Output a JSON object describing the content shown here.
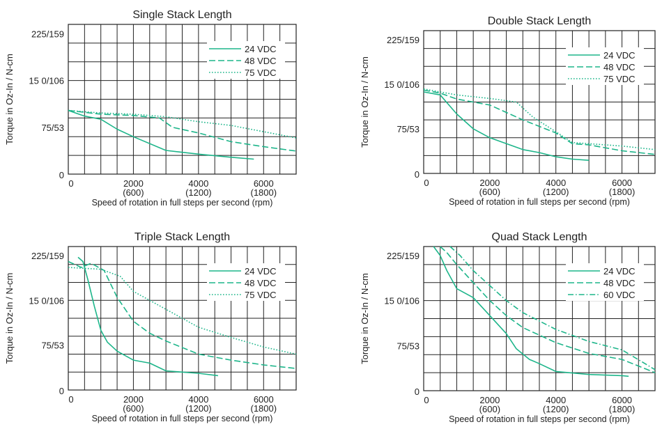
{
  "colors": {
    "series": "#1db58a",
    "grid": "#222222",
    "text": "#222222"
  },
  "chart_data": [
    {
      "type": "line",
      "title": "Single Stack Length",
      "xlabel": "Speed of rotation in full steps per second (rpm)",
      "ylabel": "Torque in Oz-In / N-cm",
      "xlim": [
        0,
        7000
      ],
      "ylim": [
        0,
        240
      ],
      "xticks": [
        {
          "value": 0,
          "label": "0",
          "sub": ""
        },
        {
          "value": 2000,
          "label": "2000",
          "sub": "(600)"
        },
        {
          "value": 4000,
          "label": "4000",
          "sub": "(1200)"
        },
        {
          "value": 6000,
          "label": "6000",
          "sub": "(1800)"
        }
      ],
      "yticks": [
        {
          "value": 0,
          "label": "0"
        },
        {
          "value": 75,
          "label": "75/53"
        },
        {
          "value": 150,
          "label": "15 0/106"
        },
        {
          "value": 225,
          "label": "225/159"
        }
      ],
      "grid": true,
      "legend_position": "top-right",
      "series": [
        {
          "name": "24 VDC",
          "dash": "solid",
          "points": [
            [
              0,
              102
            ],
            [
              500,
              93
            ],
            [
              1000,
              88
            ],
            [
              1500,
              72
            ],
            [
              2000,
              60
            ],
            [
              3000,
              38
            ],
            [
              4000,
              32
            ],
            [
              5000,
              27
            ],
            [
              5700,
              24
            ]
          ]
        },
        {
          "name": "48 VDC",
          "dash": "dashed",
          "points": [
            [
              0,
              102
            ],
            [
              1000,
              96
            ],
            [
              2000,
              94
            ],
            [
              2800,
              90
            ],
            [
              3200,
              75
            ],
            [
              4000,
              66
            ],
            [
              5000,
              52
            ],
            [
              6000,
              44
            ],
            [
              7000,
              37
            ]
          ]
        },
        {
          "name": "75 VDC",
          "dash": "dotted",
          "points": [
            [
              0,
              102
            ],
            [
              1000,
              98
            ],
            [
              2000,
              96
            ],
            [
              3000,
              92
            ],
            [
              4000,
              84
            ],
            [
              5000,
              78
            ],
            [
              6000,
              68
            ],
            [
              7000,
              58
            ]
          ]
        }
      ]
    },
    {
      "type": "line",
      "title": "Double Stack Length",
      "xlabel": "Speed of rotation in full steps per second (rpm)",
      "ylabel": "Torque in Oz-In / N-cm",
      "xlim": [
        0,
        7000
      ],
      "ylim": [
        0,
        240
      ],
      "xticks": [
        {
          "value": 0,
          "label": "0",
          "sub": ""
        },
        {
          "value": 2000,
          "label": "2000",
          "sub": "(600)"
        },
        {
          "value": 4000,
          "label": "4000",
          "sub": "(1200)"
        },
        {
          "value": 6000,
          "label": "6000",
          "sub": "(1800)"
        }
      ],
      "yticks": [
        {
          "value": 0,
          "label": "0"
        },
        {
          "value": 75,
          "label": "75/53"
        },
        {
          "value": 150,
          "label": "15 0/106"
        },
        {
          "value": 225,
          "label": "225/159"
        }
      ],
      "grid": true,
      "legend_position": "top-right",
      "series": [
        {
          "name": "24 VDC",
          "dash": "solid",
          "points": [
            [
              0,
              137
            ],
            [
              500,
              132
            ],
            [
              1000,
              100
            ],
            [
              1500,
              75
            ],
            [
              2000,
              60
            ],
            [
              2500,
              50
            ],
            [
              3000,
              40
            ],
            [
              3500,
              35
            ],
            [
              4000,
              28
            ],
            [
              4500,
              24
            ],
            [
              5000,
              22
            ]
          ]
        },
        {
          "name": "48 VDC",
          "dash": "dashed",
          "points": [
            [
              0,
              140
            ],
            [
              500,
              135
            ],
            [
              1000,
              125
            ],
            [
              2000,
              115
            ],
            [
              3000,
              90
            ],
            [
              4000,
              68
            ],
            [
              4500,
              50
            ],
            [
              5000,
              48
            ],
            [
              6000,
              38
            ],
            [
              7000,
              32
            ]
          ]
        },
        {
          "name": "75 VDC",
          "dash": "dotted",
          "points": [
            [
              0,
              142
            ],
            [
              1000,
              132
            ],
            [
              2000,
              126
            ],
            [
              2800,
              120
            ],
            [
              3300,
              95
            ],
            [
              4000,
              70
            ],
            [
              4500,
              52
            ],
            [
              5000,
              50
            ],
            [
              6000,
              46
            ],
            [
              7000,
              40
            ]
          ]
        }
      ]
    },
    {
      "type": "line",
      "title": "Triple Stack Length",
      "xlabel": "Speed of rotation in full steps per second (rpm)",
      "ylabel": "Torque in Oz-In / N-cm",
      "xlim": [
        0,
        7000
      ],
      "ylim": [
        0,
        240
      ],
      "xticks": [
        {
          "value": 0,
          "label": "0",
          "sub": ""
        },
        {
          "value": 2000,
          "label": "2000",
          "sub": "(600)"
        },
        {
          "value": 4000,
          "label": "4000",
          "sub": "(1200)"
        },
        {
          "value": 6000,
          "label": "6000",
          "sub": "(1800)"
        }
      ],
      "yticks": [
        {
          "value": 0,
          "label": "0"
        },
        {
          "value": 75,
          "label": "75/53"
        },
        {
          "value": 150,
          "label": "15 0/106"
        },
        {
          "value": 225,
          "label": "225/159"
        }
      ],
      "grid": true,
      "legend_position": "top-right",
      "series": [
        {
          "name": "24 VDC",
          "dash": "solid",
          "points": [
            [
              300,
              222
            ],
            [
              450,
              215
            ],
            [
              600,
              185
            ],
            [
              800,
              140
            ],
            [
              1000,
              100
            ],
            [
              1200,
              80
            ],
            [
              1500,
              65
            ],
            [
              2000,
              50
            ],
            [
              2500,
              45
            ],
            [
              3000,
              32
            ],
            [
              3500,
              30
            ],
            [
              4000,
              28
            ],
            [
              4600,
              24
            ]
          ]
        },
        {
          "name": "48 VDC",
          "dash": "dashed",
          "points": [
            [
              0,
              215
            ],
            [
              400,
              205
            ],
            [
              700,
              212
            ],
            [
              1100,
              200
            ],
            [
              1500,
              155
            ],
            [
              2000,
              115
            ],
            [
              2500,
              95
            ],
            [
              3000,
              82
            ],
            [
              4000,
              60
            ],
            [
              5000,
              50
            ],
            [
              6000,
              42
            ],
            [
              7000,
              36
            ]
          ]
        },
        {
          "name": "75 VDC",
          "dash": "dotted",
          "points": [
            [
              0,
              205
            ],
            [
              1000,
              202
            ],
            [
              1600,
              190
            ],
            [
              2000,
              165
            ],
            [
              3000,
              135
            ],
            [
              4000,
              105
            ],
            [
              5000,
              88
            ],
            [
              6000,
              72
            ],
            [
              7000,
              60
            ]
          ]
        }
      ]
    },
    {
      "type": "line",
      "title": "Quad Stack Length",
      "xlabel": "Speed of rotation in full steps per second (rpm)",
      "ylabel": "Torque in Oz-In / N-cm",
      "xlim": [
        0,
        7000
      ],
      "ylim": [
        0,
        240
      ],
      "xticks": [
        {
          "value": 0,
          "label": "0",
          "sub": ""
        },
        {
          "value": 2000,
          "label": "2000",
          "sub": "(600)"
        },
        {
          "value": 4000,
          "label": "4000",
          "sub": "(1200)"
        },
        {
          "value": 6000,
          "label": "6000",
          "sub": "(1800)"
        }
      ],
      "yticks": [
        {
          "value": 0,
          "label": "0"
        },
        {
          "value": 75,
          "label": "75/53"
        },
        {
          "value": 150,
          "label": "15 0/106"
        },
        {
          "value": 225,
          "label": "225/159"
        }
      ],
      "grid": true,
      "legend_position": "top-right",
      "series": [
        {
          "name": "24 VDC",
          "dash": "solid",
          "points": [
            [
              300,
              240
            ],
            [
              500,
              225
            ],
            [
              700,
              200
            ],
            [
              1000,
              170
            ],
            [
              1500,
              155
            ],
            [
              2000,
              125
            ],
            [
              2500,
              95
            ],
            [
              2800,
              70
            ],
            [
              3200,
              52
            ],
            [
              3500,
              45
            ],
            [
              4000,
              32
            ],
            [
              5000,
              27
            ],
            [
              6000,
              25
            ],
            [
              6200,
              24
            ]
          ]
        },
        {
          "name": "48 VDC",
          "dash": "dashed",
          "points": [
            [
              500,
              240
            ],
            [
              700,
              230
            ],
            [
              1000,
              210
            ],
            [
              1500,
              180
            ],
            [
              2000,
              150
            ],
            [
              2500,
              125
            ],
            [
              3000,
              105
            ],
            [
              4000,
              80
            ],
            [
              5000,
              62
            ],
            [
              6000,
              52
            ],
            [
              7000,
              30
            ]
          ]
        },
        {
          "name": "60 VDC",
          "dash": "dashdot",
          "points": [
            [
              800,
              240
            ],
            [
              1100,
              225
            ],
            [
              1500,
              200
            ],
            [
              2000,
              175
            ],
            [
              2500,
              150
            ],
            [
              3000,
              130
            ],
            [
              4000,
              102
            ],
            [
              5000,
              82
            ],
            [
              6000,
              68
            ],
            [
              7000,
              35
            ]
          ]
        }
      ]
    }
  ]
}
